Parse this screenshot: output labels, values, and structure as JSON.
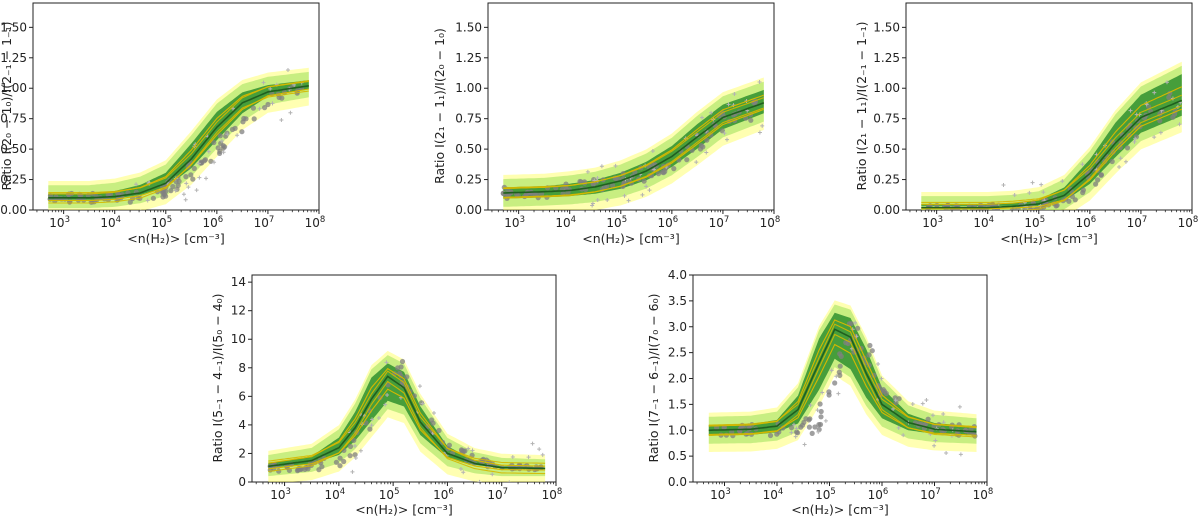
{
  "figure": {
    "type": "multi-panel line/band chart"
  },
  "colors": {
    "gray": "#808080",
    "gray_light": "#b3b3b3",
    "yellow": "#e8e832",
    "yellow_fill": "#ffff55",
    "lightgreen": "#9be05a",
    "green_fill": "#2f8f2f",
    "green_dark": "#1f5f1f",
    "gold_line": "#d4b800"
  },
  "chart_data": [
    {
      "id": "p1",
      "type": "line",
      "xlabel": "<n(H₂)> [cm⁻³]",
      "ylabel": "Ratio I(2₀ − 1₀)/I(2₋₁ − 1₋₁)",
      "xscale": "log",
      "xlim_log10": [
        2.4,
        8.0
      ],
      "ylim": [
        0,
        1.7
      ],
      "xticks": [
        {
          "v": 3,
          "base": "10",
          "exp": "3"
        },
        {
          "v": 4,
          "base": "10",
          "exp": "4"
        },
        {
          "v": 5,
          "base": "10",
          "exp": "5"
        },
        {
          "v": 6,
          "base": "10",
          "exp": "6"
        },
        {
          "v": 7,
          "base": "10",
          "exp": "7"
        },
        {
          "v": 8,
          "base": "10",
          "exp": "8"
        }
      ],
      "yticks": [
        {
          "v": 0.0,
          "t": "0.00"
        },
        {
          "v": 0.25,
          "t": "0.25"
        },
        {
          "v": 0.5,
          "t": "0.50"
        },
        {
          "v": 0.75,
          "t": "0.75"
        },
        {
          "v": 1.0,
          "t": "1.00"
        },
        {
          "v": 1.25,
          "t": "1.25"
        },
        {
          "v": 1.5,
          "t": "1.50"
        }
      ],
      "x_log10": [
        2.7,
        3.5,
        4.0,
        4.5,
        5.0,
        5.5,
        6.0,
        6.5,
        7.0,
        7.8
      ],
      "series": [
        {
          "name": "median",
          "values": [
            0.1,
            0.1,
            0.11,
            0.14,
            0.22,
            0.42,
            0.68,
            0.88,
            0.97,
            1.02
          ]
        },
        {
          "name": "envelope_low",
          "values": [
            0.05,
            0.05,
            0.06,
            0.09,
            0.15,
            0.31,
            0.54,
            0.76,
            0.9,
            0.96
          ]
        },
        {
          "name": "envelope_high",
          "values": [
            0.17,
            0.17,
            0.19,
            0.24,
            0.34,
            0.58,
            0.84,
            1.0,
            1.06,
            1.1
          ]
        },
        {
          "name": "scatter_median",
          "values": [
            0.1,
            0.1,
            0.1,
            0.11,
            0.16,
            0.32,
            0.52,
            0.7,
            0.9,
            1.02
          ]
        }
      ]
    },
    {
      "id": "p2",
      "type": "line",
      "xlabel": "<n(H₂)> [cm⁻³]",
      "ylabel": "Ratio I(2₁ − 1₁)/I(2₀ − 1₀)",
      "xscale": "log",
      "xlim_log10": [
        2.4,
        8.0
      ],
      "ylim": [
        0,
        1.7
      ],
      "xticks": [
        {
          "v": 3,
          "base": "10",
          "exp": "3"
        },
        {
          "v": 4,
          "base": "10",
          "exp": "4"
        },
        {
          "v": 5,
          "base": "10",
          "exp": "5"
        },
        {
          "v": 6,
          "base": "10",
          "exp": "6"
        },
        {
          "v": 7,
          "base": "10",
          "exp": "7"
        },
        {
          "v": 8,
          "base": "10",
          "exp": "8"
        }
      ],
      "yticks": [
        {
          "v": 0.0,
          "t": "0.00"
        },
        {
          "v": 0.25,
          "t": "0.25"
        },
        {
          "v": 0.5,
          "t": "0.50"
        },
        {
          "v": 0.75,
          "t": "0.75"
        },
        {
          "v": 1.0,
          "t": "1.00"
        },
        {
          "v": 1.25,
          "t": "1.25"
        },
        {
          "v": 1.5,
          "t": "1.50"
        }
      ],
      "x_log10": [
        2.7,
        3.5,
        4.0,
        4.5,
        5.0,
        5.5,
        6.0,
        6.5,
        7.0,
        7.8
      ],
      "series": [
        {
          "name": "median",
          "values": [
            0.14,
            0.15,
            0.16,
            0.19,
            0.24,
            0.32,
            0.44,
            0.6,
            0.76,
            0.88
          ]
        },
        {
          "name": "envelope_low",
          "values": [
            0.06,
            0.07,
            0.08,
            0.1,
            0.14,
            0.21,
            0.32,
            0.47,
            0.63,
            0.76
          ]
        },
        {
          "name": "envelope_high",
          "values": [
            0.22,
            0.23,
            0.25,
            0.28,
            0.34,
            0.43,
            0.56,
            0.74,
            0.9,
            1.02
          ]
        },
        {
          "name": "scatter_median",
          "values": [
            0.14,
            0.15,
            0.17,
            0.2,
            0.25,
            0.3,
            0.4,
            0.55,
            0.72,
            0.86
          ]
        }
      ]
    },
    {
      "id": "p3",
      "type": "line",
      "xlabel": "<n(H₂)> [cm⁻³]",
      "ylabel": "Ratio I(2₁ − 1₁)/I(2₋₁ − 1₋₁)",
      "xscale": "log",
      "xlim_log10": [
        2.4,
        8.0
      ],
      "ylim": [
        0,
        1.7
      ],
      "xticks": [
        {
          "v": 3,
          "base": "10",
          "exp": "3"
        },
        {
          "v": 4,
          "base": "10",
          "exp": "4"
        },
        {
          "v": 5,
          "base": "10",
          "exp": "5"
        },
        {
          "v": 6,
          "base": "10",
          "exp": "6"
        },
        {
          "v": 7,
          "base": "10",
          "exp": "7"
        },
        {
          "v": 8,
          "base": "10",
          "exp": "8"
        }
      ],
      "yticks": [
        {
          "v": 0.0,
          "t": "0.00"
        },
        {
          "v": 0.25,
          "t": "0.25"
        },
        {
          "v": 0.5,
          "t": "0.50"
        },
        {
          "v": 0.75,
          "t": "0.75"
        },
        {
          "v": 1.0,
          "t": "1.00"
        },
        {
          "v": 1.25,
          "t": "1.25"
        },
        {
          "v": 1.5,
          "t": "1.50"
        }
      ],
      "x_log10": [
        2.7,
        3.5,
        4.0,
        4.5,
        5.0,
        5.5,
        6.0,
        6.5,
        7.0,
        7.8
      ],
      "series": [
        {
          "name": "median",
          "values": [
            0.02,
            0.02,
            0.02,
            0.03,
            0.05,
            0.12,
            0.3,
            0.55,
            0.76,
            0.9
          ]
        },
        {
          "name": "envelope_low",
          "values": [
            0.0,
            0.0,
            0.0,
            0.0,
            0.0,
            0.04,
            0.18,
            0.4,
            0.6,
            0.74
          ]
        },
        {
          "name": "envelope_high",
          "values": [
            0.08,
            0.08,
            0.08,
            0.09,
            0.12,
            0.22,
            0.45,
            0.75,
            0.98,
            1.15
          ]
        },
        {
          "name": "scatter_median",
          "values": [
            0.02,
            0.02,
            0.02,
            0.02,
            0.03,
            0.08,
            0.24,
            0.5,
            0.74,
            0.92
          ]
        }
      ]
    },
    {
      "id": "p4",
      "type": "line",
      "xlabel": "<n(H₂)> [cm⁻³]",
      "ylabel": "Ratio I(5₋₁ − 4₋₁)/I(5₀ − 4₀)",
      "xscale": "log",
      "xlim_log10": [
        2.4,
        8.0
      ],
      "ylim": [
        0,
        14.5
      ],
      "xticks": [
        {
          "v": 3,
          "base": "10",
          "exp": "3"
        },
        {
          "v": 4,
          "base": "10",
          "exp": "4"
        },
        {
          "v": 5,
          "base": "10",
          "exp": "5"
        },
        {
          "v": 6,
          "base": "10",
          "exp": "6"
        },
        {
          "v": 7,
          "base": "10",
          "exp": "7"
        },
        {
          "v": 8,
          "base": "10",
          "exp": "8"
        }
      ],
      "yticks": [
        {
          "v": 0,
          "t": "0"
        },
        {
          "v": 2,
          "t": "2"
        },
        {
          "v": 4,
          "t": "4"
        },
        {
          "v": 6,
          "t": "6"
        },
        {
          "v": 8,
          "t": "8"
        },
        {
          "v": 10,
          "t": "10"
        },
        {
          "v": 12,
          "t": "12"
        },
        {
          "v": 14,
          "t": "14"
        }
      ],
      "x_log10": [
        2.7,
        3.5,
        4.0,
        4.3,
        4.6,
        4.9,
        5.2,
        5.5,
        6.0,
        6.5,
        7.0,
        7.8
      ],
      "series": [
        {
          "name": "median",
          "values": [
            1.1,
            1.5,
            2.4,
            3.8,
            5.8,
            7.4,
            6.6,
            4.2,
            2.0,
            1.3,
            1.0,
            0.95
          ]
        },
        {
          "name": "envelope_low",
          "values": [
            0.7,
            1.0,
            1.6,
            2.6,
            4.0,
            5.4,
            5.0,
            3.0,
            1.4,
            0.9,
            0.7,
            0.7
          ]
        },
        {
          "name": "envelope_high",
          "values": [
            1.6,
            2.1,
            3.4,
            5.2,
            7.6,
            8.6,
            8.0,
            5.6,
            2.8,
            1.8,
            1.4,
            1.3
          ]
        },
        {
          "name": "scatter_median",
          "values": [
            1.0,
            1.1,
            1.5,
            2.6,
            4.5,
            7.0,
            7.8,
            5.0,
            2.6,
            1.5,
            1.1,
            1.0
          ]
        }
      ]
    },
    {
      "id": "p5",
      "type": "line",
      "xlabel": "<n(H₂)> [cm⁻³]",
      "ylabel": "Ratio I(7₋₁ − 6₋₁)/I(7₀ − 6₀)",
      "xscale": "log",
      "xlim_log10": [
        2.4,
        8.0
      ],
      "ylim": [
        0,
        4.0
      ],
      "xticks": [
        {
          "v": 3,
          "base": "10",
          "exp": "3"
        },
        {
          "v": 4,
          "base": "10",
          "exp": "4"
        },
        {
          "v": 5,
          "base": "10",
          "exp": "5"
        },
        {
          "v": 6,
          "base": "10",
          "exp": "6"
        },
        {
          "v": 7,
          "base": "10",
          "exp": "7"
        },
        {
          "v": 8,
          "base": "10",
          "exp": "8"
        }
      ],
      "yticks": [
        {
          "v": 0.0,
          "t": "0.0"
        },
        {
          "v": 0.5,
          "t": "0.5"
        },
        {
          "v": 1.0,
          "t": "1.0"
        },
        {
          "v": 1.5,
          "t": "1.5"
        },
        {
          "v": 2.0,
          "t": "2.0"
        },
        {
          "v": 2.5,
          "t": "2.5"
        },
        {
          "v": 3.0,
          "t": "3.0"
        },
        {
          "v": 3.5,
          "t": "3.5"
        },
        {
          "v": 4.0,
          "t": "4.0"
        }
      ],
      "x_log10": [
        2.7,
        3.5,
        4.0,
        4.4,
        4.8,
        5.1,
        5.4,
        5.7,
        6.0,
        6.5,
        7.0,
        7.8
      ],
      "series": [
        {
          "name": "median",
          "values": [
            1.0,
            1.02,
            1.08,
            1.4,
            2.3,
            2.95,
            2.8,
            2.1,
            1.5,
            1.15,
            1.02,
            0.97
          ]
        },
        {
          "name": "envelope_low",
          "values": [
            0.82,
            0.83,
            0.88,
            1.05,
            1.7,
            2.3,
            2.1,
            1.55,
            1.15,
            0.92,
            0.85,
            0.82
          ]
        },
        {
          "name": "envelope_high",
          "values": [
            1.18,
            1.2,
            1.28,
            1.75,
            2.85,
            3.35,
            3.25,
            2.65,
            1.9,
            1.4,
            1.22,
            1.15
          ]
        },
        {
          "name": "scatter_median",
          "values": [
            1.0,
            1.0,
            1.02,
            1.08,
            1.3,
            2.0,
            2.9,
            2.6,
            1.8,
            1.25,
            1.05,
            0.98
          ]
        }
      ]
    }
  ]
}
